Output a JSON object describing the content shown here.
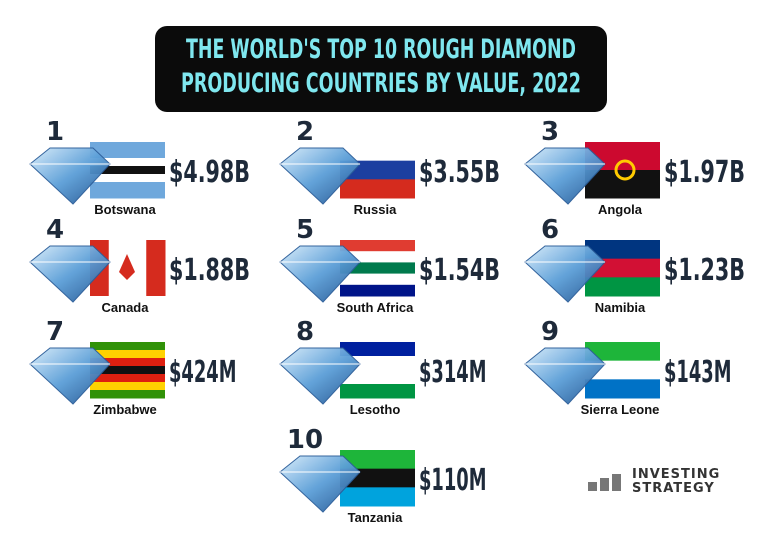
{
  "header": {
    "title_lines": [
      "THE WORLD'S TOP 10 ROUGH DIAMOND",
      "PRODUCING COUNTRIES BY VALUE, 2022"
    ]
  },
  "items": [
    {
      "rank": 1,
      "country": "Botswana",
      "value": "$4.98B"
    },
    {
      "rank": 2,
      "country": "Russia",
      "value": "$3.55B"
    },
    {
      "rank": 3,
      "country": "Angola",
      "value": "$1.97B"
    },
    {
      "rank": 4,
      "country": "Canada",
      "value": "$1.88B"
    },
    {
      "rank": 5,
      "country": "South Africa",
      "value": "$1.54B"
    },
    {
      "rank": 6,
      "country": "Namibia",
      "value": "$1.23B"
    },
    {
      "rank": 7,
      "country": "Zimbabwe",
      "value": "$424M"
    },
    {
      "rank": 8,
      "country": "Lesotho",
      "value": "$314M"
    },
    {
      "rank": 9,
      "country": "Sierra Leone",
      "value": "$143M"
    },
    {
      "rank": 10,
      "country": "Tanzania",
      "value": "$110M"
    }
  ],
  "logo": {
    "line1": "INVESTING",
    "line2": "STRATEGY"
  }
}
